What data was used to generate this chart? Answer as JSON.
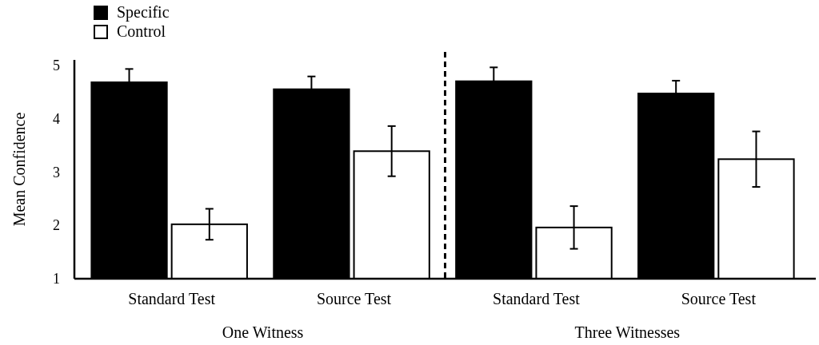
{
  "chart_data": {
    "type": "bar",
    "ylabel": "Mean Confidence",
    "categories": [
      "Standard Test",
      "Source Test",
      "Standard Test",
      "Source Test"
    ],
    "series": [
      {
        "name": "Specific",
        "color": "#000000",
        "values": [
          4.68,
          4.55,
          4.7,
          4.47
        ],
        "errors": [
          0.25,
          0.24,
          0.26,
          0.24
        ]
      },
      {
        "name": "Control",
        "color": "#ffffff",
        "values": [
          2.02,
          3.39,
          1.96,
          3.24
        ],
        "errors": [
          0.29,
          0.47,
          0.4,
          0.52
        ]
      }
    ],
    "ylim": [
      1,
      5.1
    ],
    "yticks": [
      1,
      2,
      3,
      4,
      5
    ],
    "grid": false,
    "legend": "top left",
    "annotations": [
      "One Witness",
      "Three Witnesses"
    ]
  }
}
